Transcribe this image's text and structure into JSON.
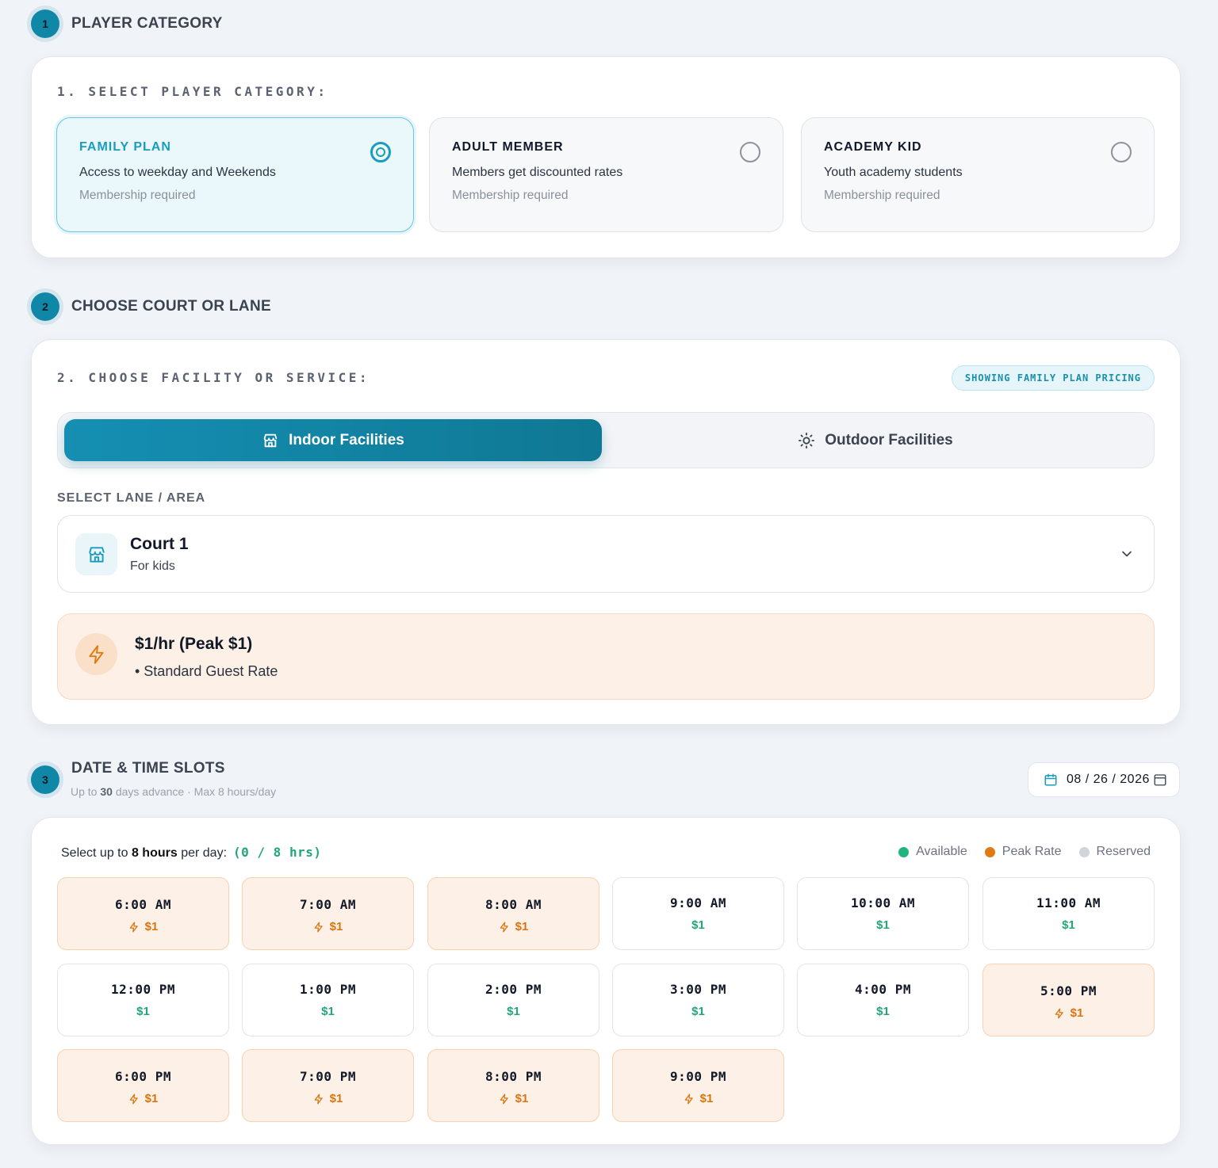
{
  "section1": {
    "step": "1",
    "title": "PLAYER CATEGORY",
    "label": "1. SELECT PLAYER CATEGORY:",
    "categories": [
      {
        "title": "FAMILY PLAN",
        "desc": "Access to weekday and Weekends",
        "note": "Membership required",
        "selected": true
      },
      {
        "title": "ADULT MEMBER",
        "desc": "Members get discounted rates",
        "note": "Membership required",
        "selected": false
      },
      {
        "title": "ACADEMY KID",
        "desc": "Youth academy students",
        "note": "Membership required",
        "selected": false
      }
    ]
  },
  "section2": {
    "step": "2",
    "title": "CHOOSE COURT OR LANE",
    "label": "2. CHOOSE FACILITY OR SERVICE:",
    "pricing_pill": "SHOWING FAMILY PLAN PRICING",
    "tabs": {
      "indoor": "Indoor Facilities",
      "outdoor": "Outdoor Facilities"
    },
    "lane_label": "SELECT LANE / AREA",
    "lane": {
      "name": "Court 1",
      "sub": "For kids"
    },
    "rate": {
      "main": "$1/hr (Peak $1)",
      "sub": "• Standard Guest Rate"
    }
  },
  "section3": {
    "step": "3",
    "title": "DATE & TIME SLOTS",
    "sub_prefix": "Up to ",
    "sub_days": "30",
    "sub_suffix": " days advance · Max 8 hours/day",
    "date": "08 / 26 / 2026",
    "info_prefix": "Select up to ",
    "info_bold": "8 hours",
    "info_suffix": " per day:",
    "count": "(0 / 8 hrs)",
    "legend": {
      "available": "Available",
      "peak": "Peak Rate",
      "reserved": "Reserved"
    },
    "colors": {
      "available": "#22b47f",
      "peak": "#e07a12",
      "reserved": "#d1d5db"
    }
  },
  "slots": [
    {
      "time": "6:00 AM",
      "price": "$1",
      "peak": true
    },
    {
      "time": "7:00 AM",
      "price": "$1",
      "peak": true
    },
    {
      "time": "8:00 AM",
      "price": "$1",
      "peak": true
    },
    {
      "time": "9:00 AM",
      "price": "$1",
      "peak": false
    },
    {
      "time": "10:00 AM",
      "price": "$1",
      "peak": false
    },
    {
      "time": "11:00 AM",
      "price": "$1",
      "peak": false
    },
    {
      "time": "12:00 PM",
      "price": "$1",
      "peak": false
    },
    {
      "time": "1:00 PM",
      "price": "$1",
      "peak": false
    },
    {
      "time": "2:00 PM",
      "price": "$1",
      "peak": false
    },
    {
      "time": "3:00 PM",
      "price": "$1",
      "peak": false
    },
    {
      "time": "4:00 PM",
      "price": "$1",
      "peak": false
    },
    {
      "time": "5:00 PM",
      "price": "$1",
      "peak": true
    },
    {
      "time": "6:00 PM",
      "price": "$1",
      "peak": true
    },
    {
      "time": "7:00 PM",
      "price": "$1",
      "peak": true
    },
    {
      "time": "8:00 PM",
      "price": "$1",
      "peak": true
    },
    {
      "time": "9:00 PM",
      "price": "$1",
      "peak": true
    }
  ]
}
